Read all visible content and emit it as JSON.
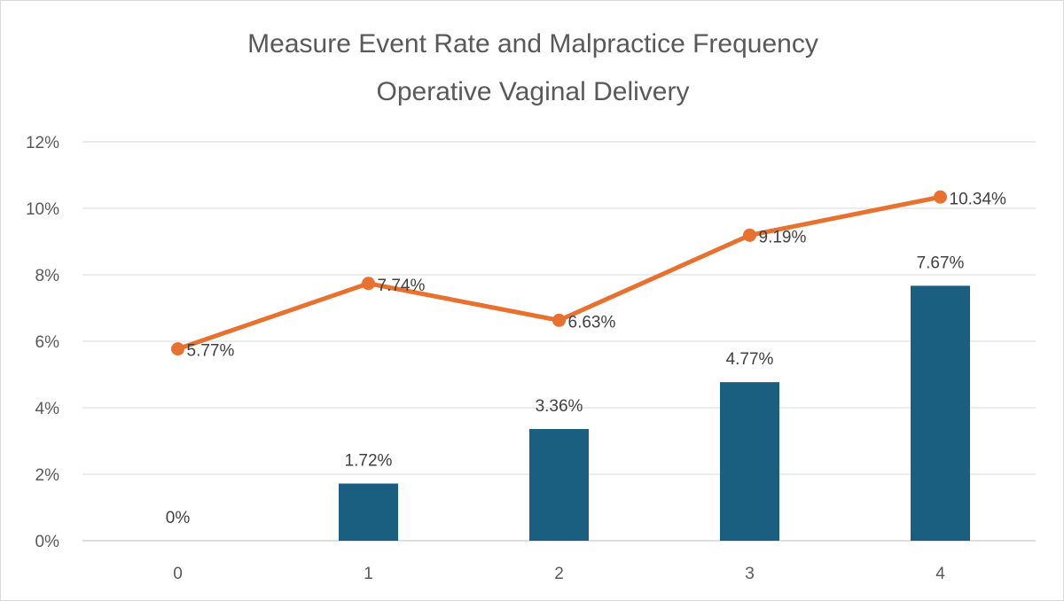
{
  "chart_data": {
    "type": "bar",
    "title_lines": [
      "Measure Event Rate and Malpractice Frequency",
      "Operative Vaginal Delivery"
    ],
    "categories": [
      "0",
      "1",
      "2",
      "3",
      "4"
    ],
    "ylim": [
      0,
      12
    ],
    "y_ticks": [
      0,
      2,
      4,
      6,
      8,
      10,
      12
    ],
    "y_tick_labels": [
      "0%",
      "2%",
      "4%",
      "6%",
      "8%",
      "10%",
      "12%"
    ],
    "xlabel": "",
    "ylabel": "",
    "grid": true,
    "legend": "none",
    "series": [
      {
        "type": "bar",
        "color": "#1b5f80",
        "values": [
          0,
          1.72,
          3.36,
          4.77,
          7.67
        ],
        "labels": [
          "0%",
          "1.72%",
          "3.36%",
          "4.77%",
          "7.67%"
        ]
      },
      {
        "type": "line",
        "color": "#e8712f",
        "values": [
          5.77,
          7.74,
          6.63,
          9.19,
          10.34
        ],
        "labels": [
          "5.77%",
          "7.74%",
          "6.63%",
          "9.19%",
          "10.34%"
        ]
      }
    ]
  }
}
